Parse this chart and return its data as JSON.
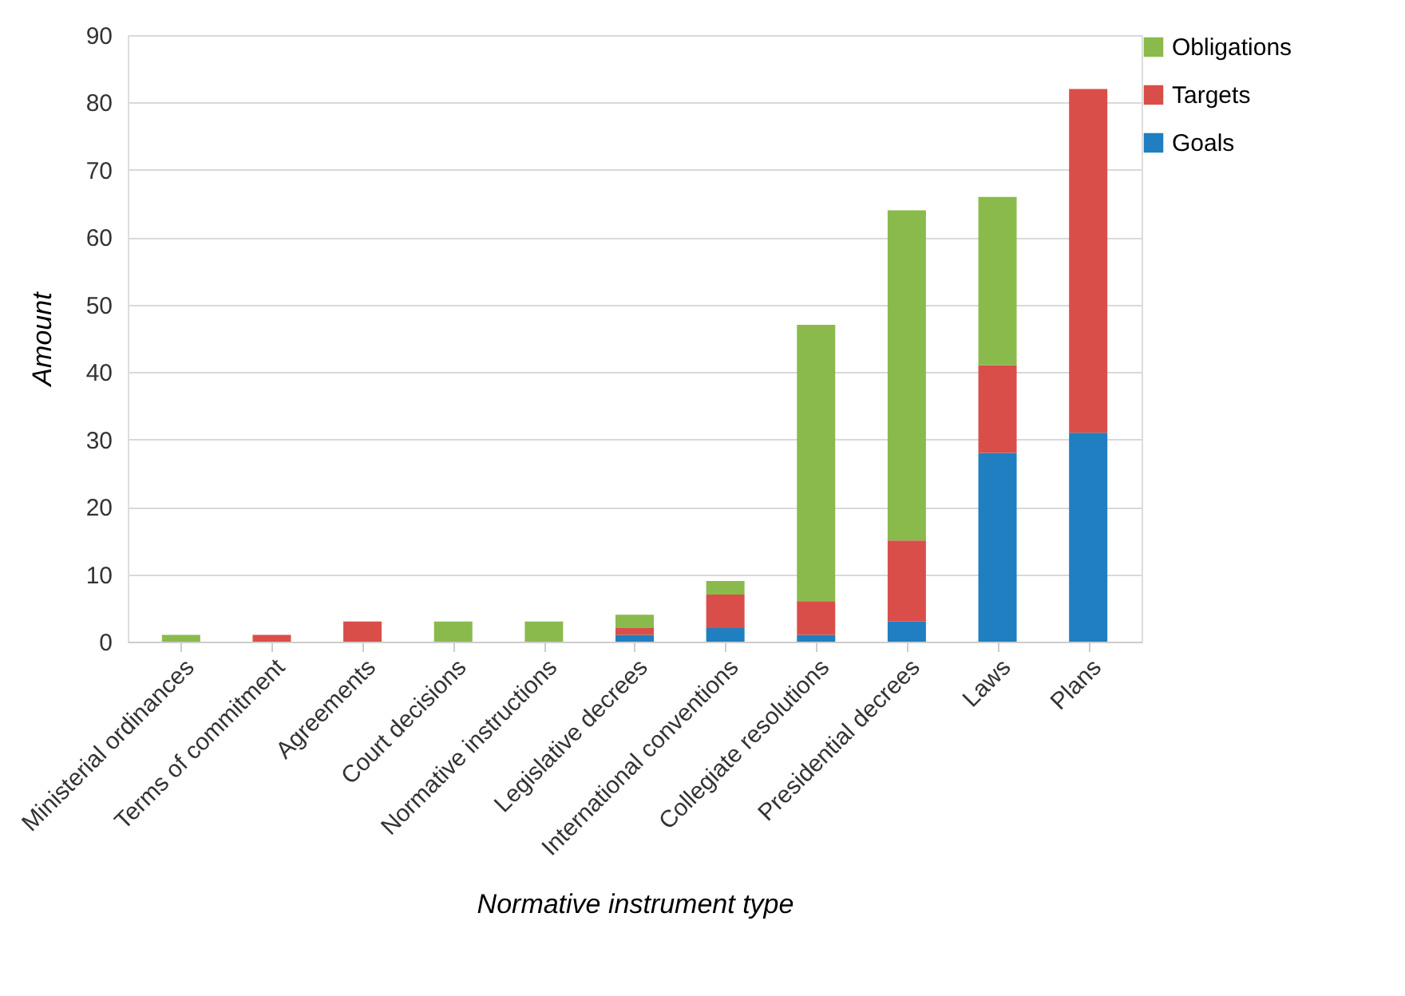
{
  "chart_data": {
    "type": "bar",
    "stacked": true,
    "xlabel": "Normative instrument type",
    "ylabel": "Amount",
    "categories": [
      "Ministerial ordinances",
      "Terms of commitment",
      "Agreements",
      "Court decisions",
      "Normative instructions",
      "Legislative decrees",
      "International conventions",
      "Collegiate resolutions",
      "Presidential decrees",
      "Laws",
      "Plans"
    ],
    "series": [
      {
        "name": "Goals",
        "color": "#1f7fc0",
        "values": [
          0,
          0,
          0,
          0,
          0,
          1,
          2,
          1,
          3,
          28,
          31
        ]
      },
      {
        "name": "Targets",
        "color": "#da4e4a",
        "values": [
          0,
          1,
          3,
          0,
          0,
          1,
          5,
          5,
          12,
          13,
          51
        ]
      },
      {
        "name": "Obligations",
        "color": "#8bba4c",
        "values": [
          1,
          0,
          0,
          3,
          3,
          2,
          2,
          41,
          49,
          25,
          0
        ]
      }
    ],
    "ylim": [
      0,
      90
    ],
    "yticks": [
      0,
      10,
      20,
      30,
      40,
      50,
      60,
      70,
      80,
      90
    ],
    "grid": "y",
    "legend": "right"
  }
}
